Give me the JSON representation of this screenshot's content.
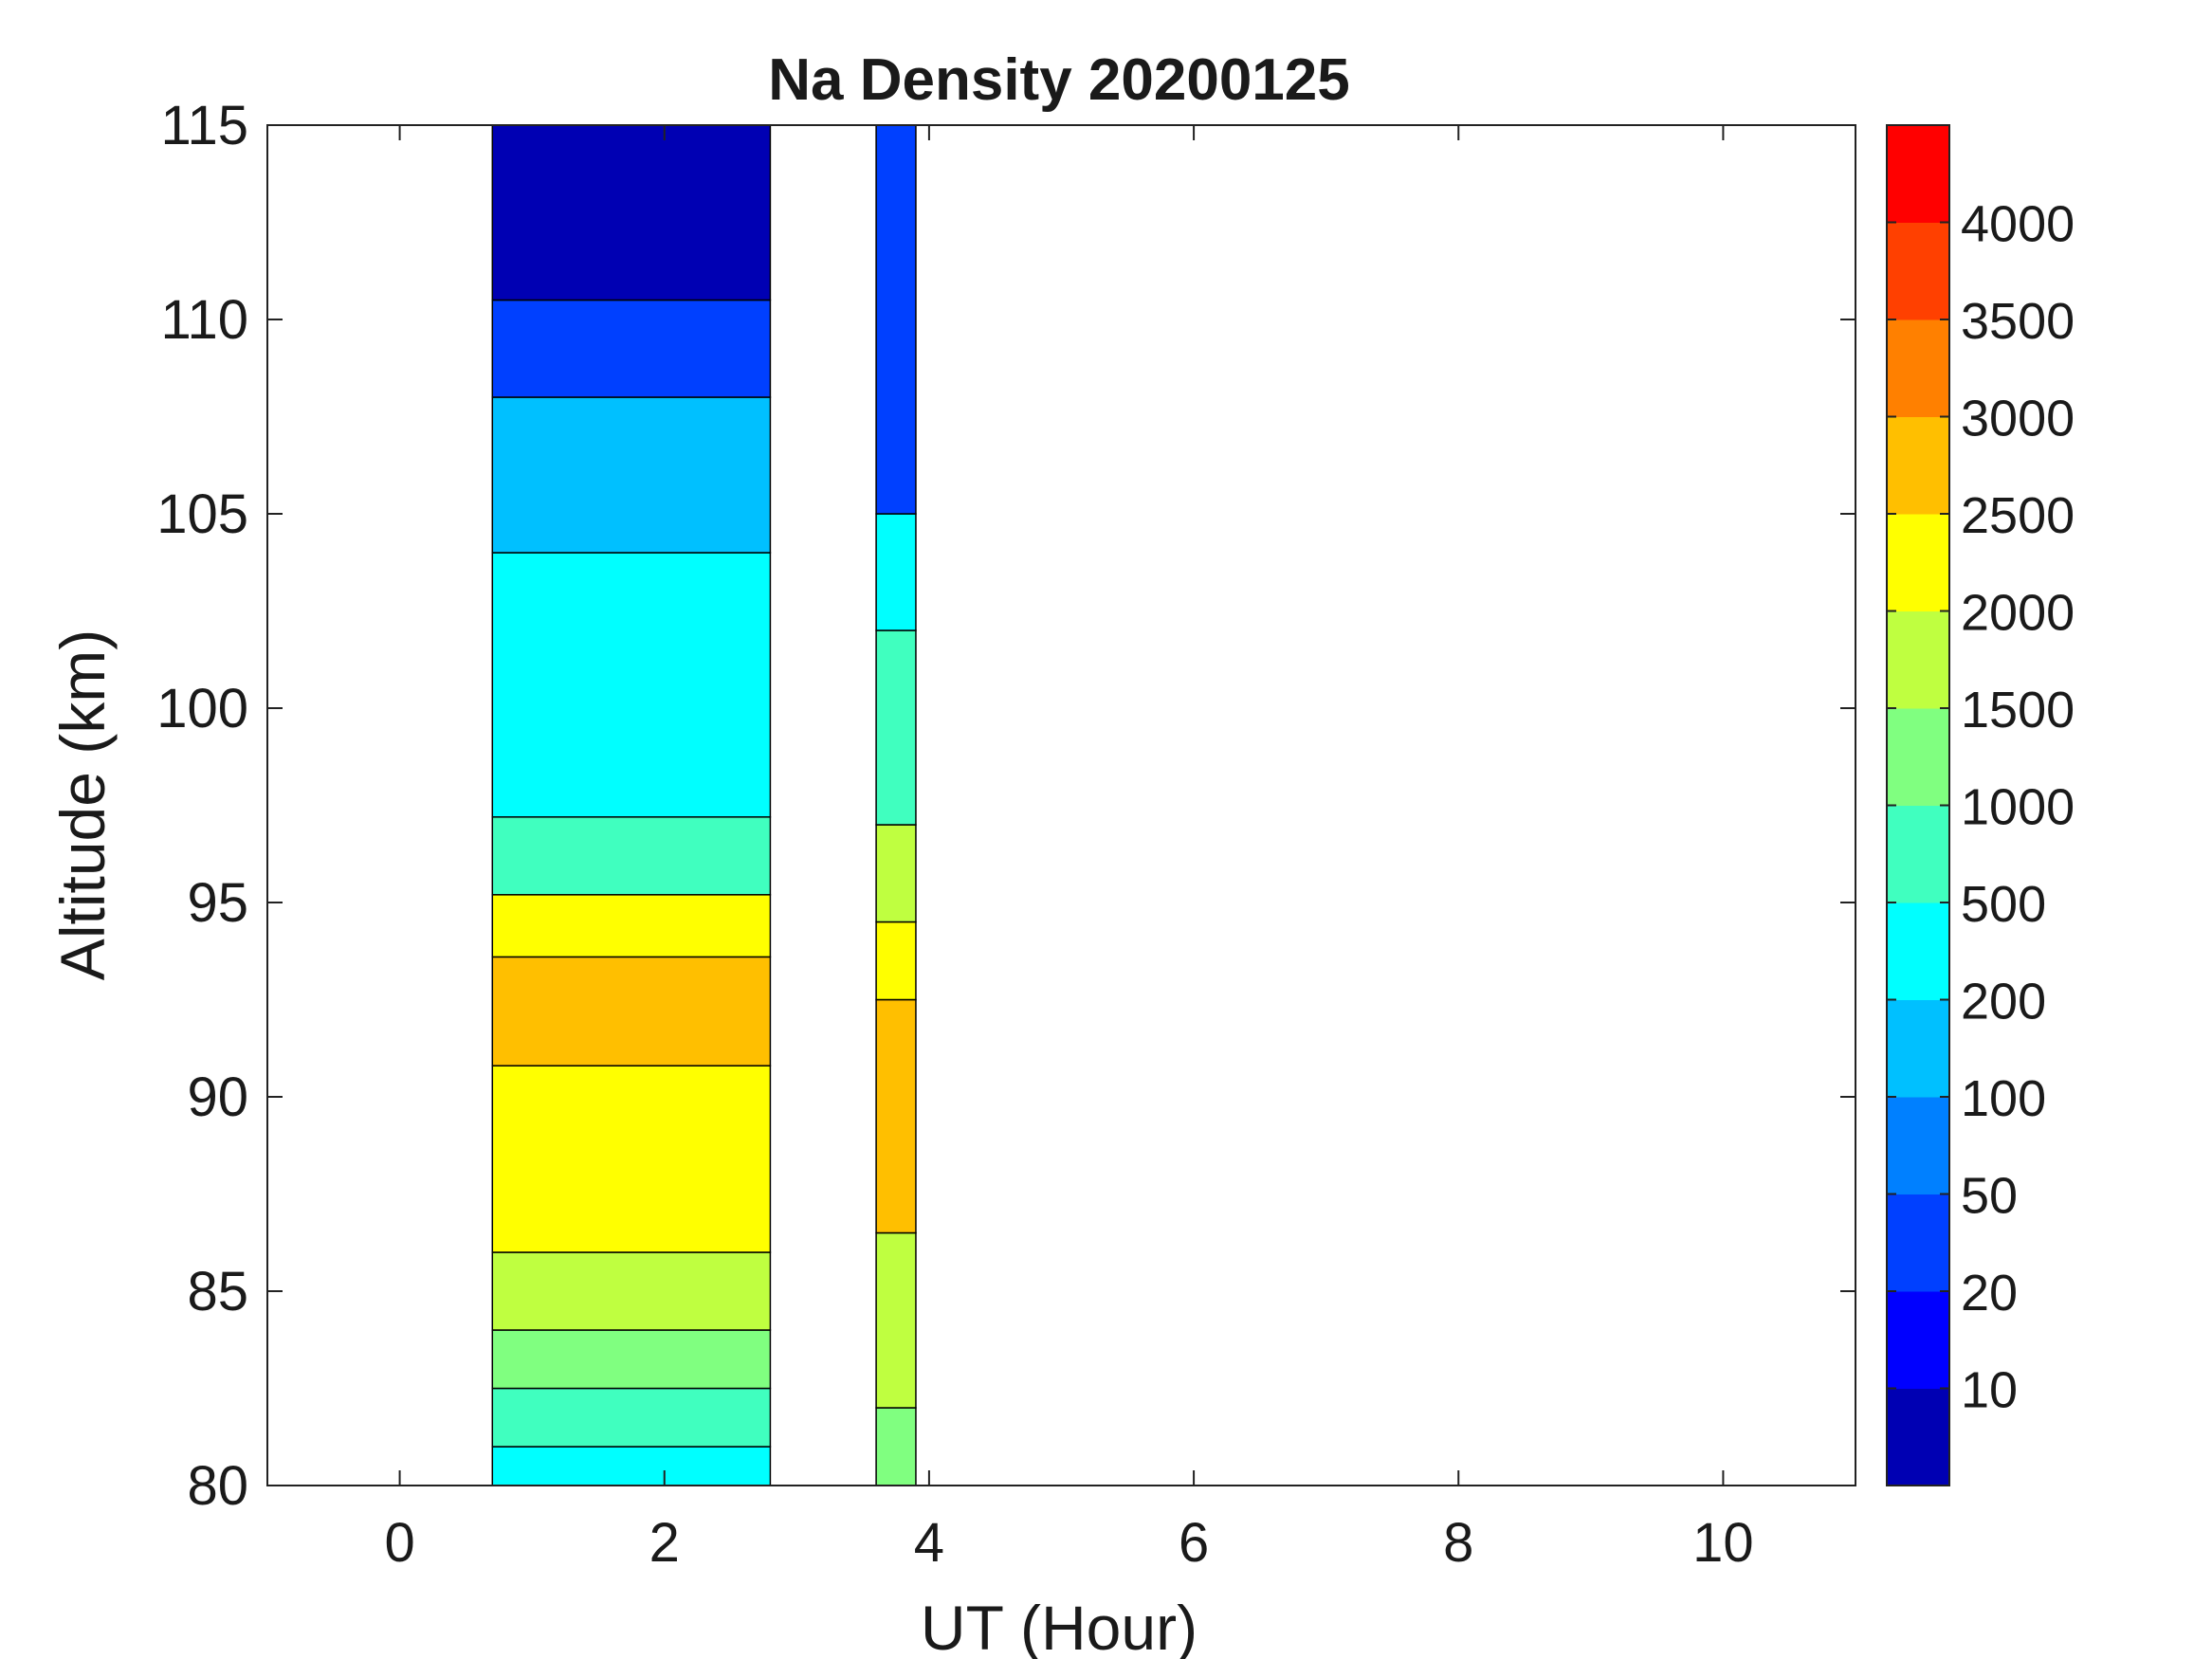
{
  "chart_data": {
    "type": "heatmap",
    "title": "Na Density 20200125",
    "xlabel": "UT (Hour)",
    "ylabel": "Altitude (km)",
    "xlim": [
      -1,
      11
    ],
    "ylim": [
      80,
      115
    ],
    "xticks": [
      0,
      2,
      4,
      6,
      8,
      10
    ],
    "yticks": [
      80,
      85,
      90,
      95,
      100,
      105,
      110,
      115
    ],
    "grid": false,
    "colorbar": {
      "levels": [
        "",
        "10",
        "20",
        "50",
        "100",
        "200",
        "500",
        "1000",
        "1500",
        "2000",
        "2500",
        "3000",
        "3500",
        "4000",
        ""
      ],
      "colors": [
        "#0000b3",
        "#0000ff",
        "#0040ff",
        "#0080ff",
        "#00c0ff",
        "#00ffff",
        "#40ffbf",
        "#80ff80",
        "#bfff40",
        "#ffff00",
        "#ffbf00",
        "#ff8000",
        "#ff4000",
        "#ff0000"
      ]
    },
    "data_blocks": [
      {
        "x_range": [
          0.7,
          2.8
        ],
        "bands": [
          {
            "alt": [
              80,
              81
            ],
            "color_index": 5
          },
          {
            "alt": [
              81,
              82.5
            ],
            "color_index": 6
          },
          {
            "alt": [
              82.5,
              84
            ],
            "color_index": 7
          },
          {
            "alt": [
              84,
              86
            ],
            "color_index": 8
          },
          {
            "alt": [
              86,
              90.8
            ],
            "color_index": 9
          },
          {
            "alt": [
              90.8,
              93.6
            ],
            "color_index": 10
          },
          {
            "alt": [
              93.6,
              95.2
            ],
            "color_index": 9
          },
          {
            "alt": [
              95.2,
              97.2
            ],
            "color_index": 6
          },
          {
            "alt": [
              97.2,
              104
            ],
            "color_index": 5
          },
          {
            "alt": [
              104,
              108
            ],
            "color_index": 4
          },
          {
            "alt": [
              108,
              110.5
            ],
            "color_index": 2
          },
          {
            "alt": [
              110.5,
              115
            ],
            "color_index": 0
          }
        ]
      },
      {
        "x_range": [
          3.6,
          3.9
        ],
        "bands": [
          {
            "alt": [
              80,
              82
            ],
            "color_index": 7
          },
          {
            "alt": [
              82,
              86.5
            ],
            "color_index": 8
          },
          {
            "alt": [
              86.5,
              92.5
            ],
            "color_index": 10
          },
          {
            "alt": [
              92.5,
              94.5
            ],
            "color_index": 9
          },
          {
            "alt": [
              94.5,
              97
            ],
            "color_index": 8
          },
          {
            "alt": [
              97,
              102
            ],
            "color_index": 6
          },
          {
            "alt": [
              102,
              105
            ],
            "color_index": 5
          },
          {
            "alt": [
              105,
              115
            ],
            "color_index": 2
          }
        ]
      }
    ]
  }
}
